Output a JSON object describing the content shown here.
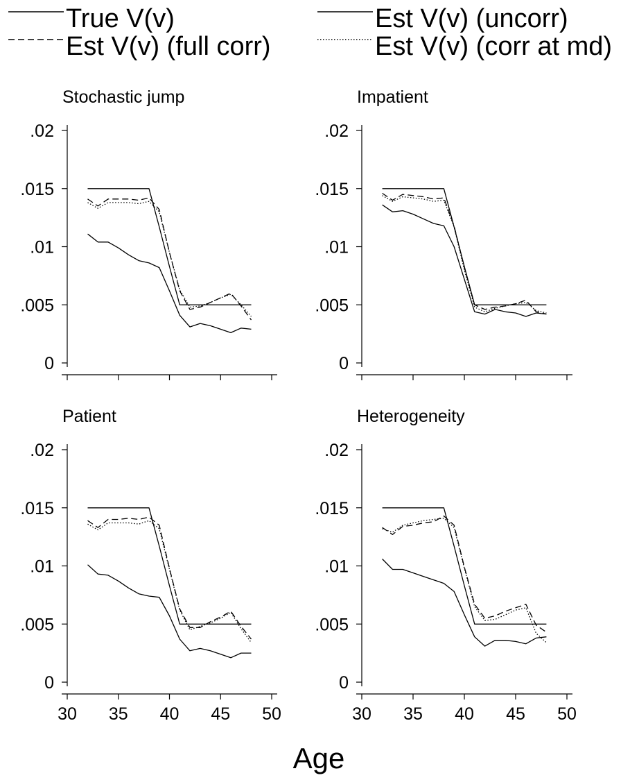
{
  "legend": {
    "position": "top",
    "items": [
      {
        "label": "True V(v)",
        "dash": "solid"
      },
      {
        "label": "Est V(v) (uncorr)",
        "dash": "solid"
      },
      {
        "label": "Est V(v) (full corr)",
        "dash": "dashed"
      },
      {
        "label": "Est V(v) (corr at md)",
        "dash": "dotted"
      }
    ]
  },
  "xlabel": "Age",
  "line_color": "#000000",
  "chart_data": [
    {
      "type": "line",
      "title": "Stochastic jump",
      "xlim": [
        30,
        50
      ],
      "ylim": [
        0,
        0.02
      ],
      "xticks": [
        30,
        35,
        40,
        45,
        50
      ],
      "xtick_labels_shown": false,
      "yticks": [
        0,
        0.005,
        0.01,
        0.015,
        0.02
      ],
      "ytick_labels": [
        "0",
        ".005",
        ".01",
        ".015",
        ".02"
      ],
      "x": [
        32,
        33,
        34,
        35,
        36,
        37,
        38,
        39,
        40,
        41,
        42,
        43,
        44,
        45,
        46,
        47,
        48
      ],
      "series": [
        {
          "name": "True V(v)",
          "values": [
            0.015,
            0.015,
            0.015,
            0.015,
            0.015,
            0.015,
            0.015,
            0.0117,
            0.0083,
            0.005,
            0.005,
            0.005,
            0.005,
            0.005,
            0.005,
            0.005,
            0.005
          ]
        },
        {
          "name": "Est V(v) (uncorr)",
          "values": [
            0.0111,
            0.0104,
            0.0104,
            0.0099,
            0.0093,
            0.0088,
            0.0086,
            0.0082,
            0.0062,
            0.0041,
            0.0031,
            0.0034,
            0.0032,
            0.0029,
            0.0026,
            0.003,
            0.0029
          ]
        },
        {
          "name": "Est V(v) (full corr)",
          "values": [
            0.0141,
            0.0135,
            0.0141,
            0.0141,
            0.0141,
            0.014,
            0.0142,
            0.0132,
            0.0095,
            0.0062,
            0.0046,
            0.0048,
            0.0052,
            0.0056,
            0.006,
            0.0049,
            0.0037
          ]
        },
        {
          "name": "Est V(v) (corr at md)",
          "values": [
            0.0138,
            0.0133,
            0.0138,
            0.0138,
            0.0138,
            0.0137,
            0.0139,
            0.013,
            0.0095,
            0.0063,
            0.0048,
            0.0049,
            0.0052,
            0.0056,
            0.0059,
            0.005,
            0.004
          ]
        }
      ]
    },
    {
      "type": "line",
      "title": "Impatient",
      "xlim": [
        30,
        50
      ],
      "ylim": [
        0,
        0.02
      ],
      "xticks": [
        30,
        35,
        40,
        45,
        50
      ],
      "xtick_labels_shown": false,
      "yticks": [
        0,
        0.005,
        0.01,
        0.015,
        0.02
      ],
      "ytick_labels": [
        "0",
        ".005",
        ".01",
        ".015",
        ".02"
      ],
      "x": [
        32,
        33,
        34,
        35,
        36,
        37,
        38,
        39,
        40,
        41,
        42,
        43,
        44,
        45,
        46,
        47,
        48
      ],
      "series": [
        {
          "name": "True V(v)",
          "values": [
            0.015,
            0.015,
            0.015,
            0.015,
            0.015,
            0.015,
            0.015,
            0.0117,
            0.0083,
            0.005,
            0.005,
            0.005,
            0.005,
            0.005,
            0.005,
            0.005,
            0.005
          ]
        },
        {
          "name": "Est V(v) (uncorr)",
          "values": [
            0.0136,
            0.013,
            0.0131,
            0.0128,
            0.0124,
            0.012,
            0.0118,
            0.01,
            0.0072,
            0.0044,
            0.0042,
            0.0046,
            0.0044,
            0.0043,
            0.004,
            0.0043,
            0.0042
          ]
        },
        {
          "name": "Est V(v) (full corr)",
          "values": [
            0.0146,
            0.014,
            0.0145,
            0.0144,
            0.0143,
            0.0141,
            0.0142,
            0.0118,
            0.0082,
            0.005,
            0.0046,
            0.0048,
            0.0049,
            0.0051,
            0.0054,
            0.0044,
            0.0042
          ]
        },
        {
          "name": "Est V(v) (corr at md)",
          "values": [
            0.0144,
            0.0139,
            0.0143,
            0.0142,
            0.0141,
            0.0139,
            0.014,
            0.0117,
            0.008,
            0.0048,
            0.0044,
            0.0047,
            0.0049,
            0.0051,
            0.0052,
            0.0045,
            0.0043
          ]
        }
      ]
    },
    {
      "type": "line",
      "title": "Patient",
      "xlim": [
        30,
        50
      ],
      "ylim": [
        0,
        0.02
      ],
      "xticks": [
        30,
        35,
        40,
        45,
        50
      ],
      "xtick_labels": [
        "30",
        "35",
        "40",
        "45",
        "50"
      ],
      "yticks": [
        0,
        0.005,
        0.01,
        0.015,
        0.02
      ],
      "ytick_labels": [
        "0",
        ".005",
        ".01",
        ".015",
        ".02"
      ],
      "x": [
        32,
        33,
        34,
        35,
        36,
        37,
        38,
        39,
        40,
        41,
        42,
        43,
        44,
        45,
        46,
        47,
        48
      ],
      "series": [
        {
          "name": "True V(v)",
          "values": [
            0.015,
            0.015,
            0.015,
            0.015,
            0.015,
            0.015,
            0.015,
            0.0117,
            0.0083,
            0.005,
            0.005,
            0.005,
            0.005,
            0.005,
            0.005,
            0.005,
            0.005
          ]
        },
        {
          "name": "Est V(v) (uncorr)",
          "values": [
            0.0101,
            0.0093,
            0.0092,
            0.0087,
            0.0081,
            0.0076,
            0.0074,
            0.0073,
            0.0057,
            0.0037,
            0.0027,
            0.0029,
            0.0027,
            0.0024,
            0.0021,
            0.0025,
            0.0025
          ]
        },
        {
          "name": "Est V(v) (full corr)",
          "values": [
            0.0139,
            0.0133,
            0.014,
            0.014,
            0.0141,
            0.014,
            0.0142,
            0.0135,
            0.0098,
            0.0063,
            0.0047,
            0.0047,
            0.0052,
            0.0056,
            0.0061,
            0.0048,
            0.0037
          ]
        },
        {
          "name": "Est V(v) (corr at md)",
          "values": [
            0.0136,
            0.0131,
            0.0137,
            0.0137,
            0.0137,
            0.0136,
            0.0139,
            0.0132,
            0.0097,
            0.0062,
            0.0045,
            0.0048,
            0.0051,
            0.0055,
            0.006,
            0.0046,
            0.0034
          ]
        }
      ]
    },
    {
      "type": "line",
      "title": "Heterogeneity",
      "xlim": [
        30,
        50
      ],
      "ylim": [
        0,
        0.02
      ],
      "xticks": [
        30,
        35,
        40,
        45,
        50
      ],
      "xtick_labels": [
        "30",
        "35",
        "40",
        "45",
        "50"
      ],
      "yticks": [
        0,
        0.005,
        0.01,
        0.015,
        0.02
      ],
      "ytick_labels": [
        "0",
        ".005",
        ".01",
        ".015",
        ".02"
      ],
      "x": [
        32,
        33,
        34,
        35,
        36,
        37,
        38,
        39,
        40,
        41,
        42,
        43,
        44,
        45,
        46,
        47,
        48
      ],
      "series": [
        {
          "name": "True V(v)",
          "values": [
            0.015,
            0.015,
            0.015,
            0.015,
            0.015,
            0.015,
            0.015,
            0.0117,
            0.0083,
            0.005,
            0.005,
            0.005,
            0.005,
            0.005,
            0.005,
            0.005,
            0.005
          ]
        },
        {
          "name": "Est V(v) (uncorr)",
          "values": [
            0.0106,
            0.0097,
            0.0097,
            0.0094,
            0.0091,
            0.0088,
            0.0085,
            0.0078,
            0.0058,
            0.0039,
            0.0031,
            0.0036,
            0.0036,
            0.0035,
            0.0033,
            0.0038,
            0.0039
          ]
        },
        {
          "name": "Est V(v) (full corr)",
          "values": [
            0.0133,
            0.0127,
            0.0134,
            0.0135,
            0.0137,
            0.0138,
            0.0143,
            0.0135,
            0.0099,
            0.0067,
            0.0055,
            0.0057,
            0.0061,
            0.0064,
            0.0067,
            0.0049,
            0.0043
          ]
        },
        {
          "name": "Est V(v) (corr at md)",
          "values": [
            0.0132,
            0.0129,
            0.0135,
            0.0137,
            0.0139,
            0.014,
            0.0141,
            0.0133,
            0.0098,
            0.0065,
            0.0053,
            0.0054,
            0.0058,
            0.0062,
            0.0064,
            0.0042,
            0.0034
          ]
        }
      ]
    }
  ]
}
